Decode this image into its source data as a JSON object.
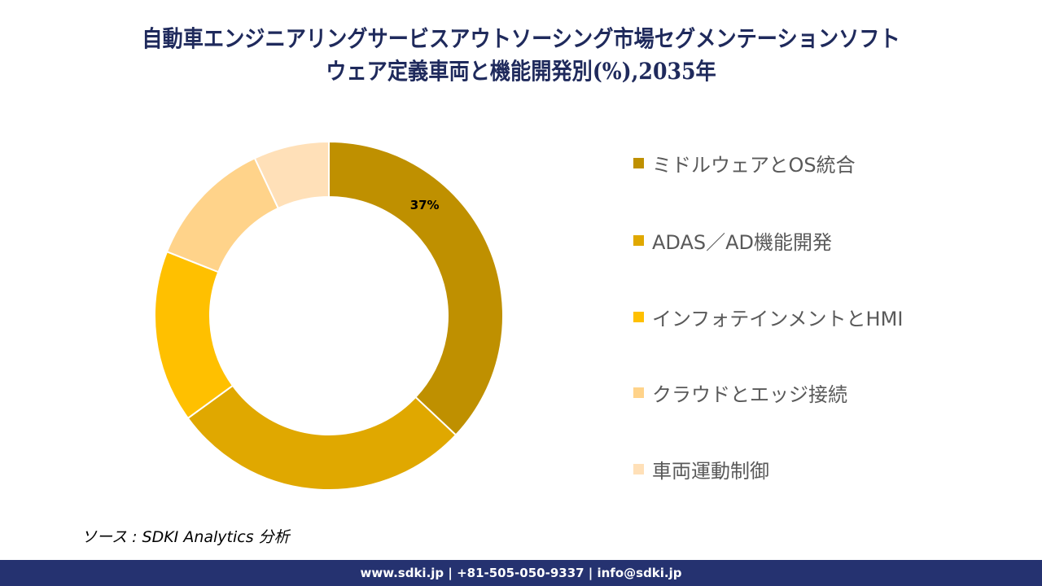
{
  "title": {
    "line1": "自動車エンジニアリングサービスアウトソーシング市場セグメンテーションソフト",
    "line2": "ウェア定義車両と機能開発別(%),2035年"
  },
  "chart_data": {
    "type": "pie",
    "variant": "donut",
    "title": "自動車エンジニアリングサービスアウトソーシング市場セグメンテーションソフトウェア定義車両と機能開発別(%),2035年",
    "legend_position": "right",
    "categories": [
      "ミドルウェアとOS統合",
      "ADAS／AD機能開発",
      "インフォテインメントとHMI",
      "クラウドとエッジ接続",
      "車両運動制御"
    ],
    "values": [
      37,
      28,
      16,
      12,
      7
    ],
    "colors": [
      "#BF9000",
      "#E0A800",
      "#FFC000",
      "#FFD38A",
      "#FFE0B8"
    ],
    "data_labels": [
      "37%",
      null,
      null,
      null,
      null
    ]
  },
  "source": "ソース : SDKI Analytics 分析",
  "footer": "www.sdki.jp | +81-505-050-9337 | info@sdki.jp"
}
